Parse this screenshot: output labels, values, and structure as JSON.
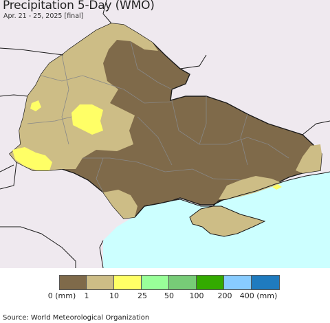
{
  "header": {
    "title": "Precipitation 5-Day (WMO)",
    "subtitle": "Apr. 21 - 25, 2025 [final]"
  },
  "map": {
    "colors": {
      "background_land": "#efe9ef",
      "sea": "#ccffff",
      "cat_0": "#7f6a4a",
      "cat_1": "#cdbd86",
      "cat_10": "#ffff66",
      "border": "#1a1a1a",
      "oblast_line": "#888888"
    }
  },
  "legend": {
    "unit_label": "0 (mm)",
    "ticks": [
      "1",
      "10",
      "25",
      "50",
      "100",
      "200",
      "400 (mm)"
    ],
    "colors": [
      "#7f6a4a",
      "#cdbd86",
      "#ffff66",
      "#99ff99",
      "#77cc77",
      "#33aa00",
      "#88ccff",
      "#1f7bbf"
    ]
  },
  "footer": {
    "source": "Source: World Meteorological Organization"
  }
}
